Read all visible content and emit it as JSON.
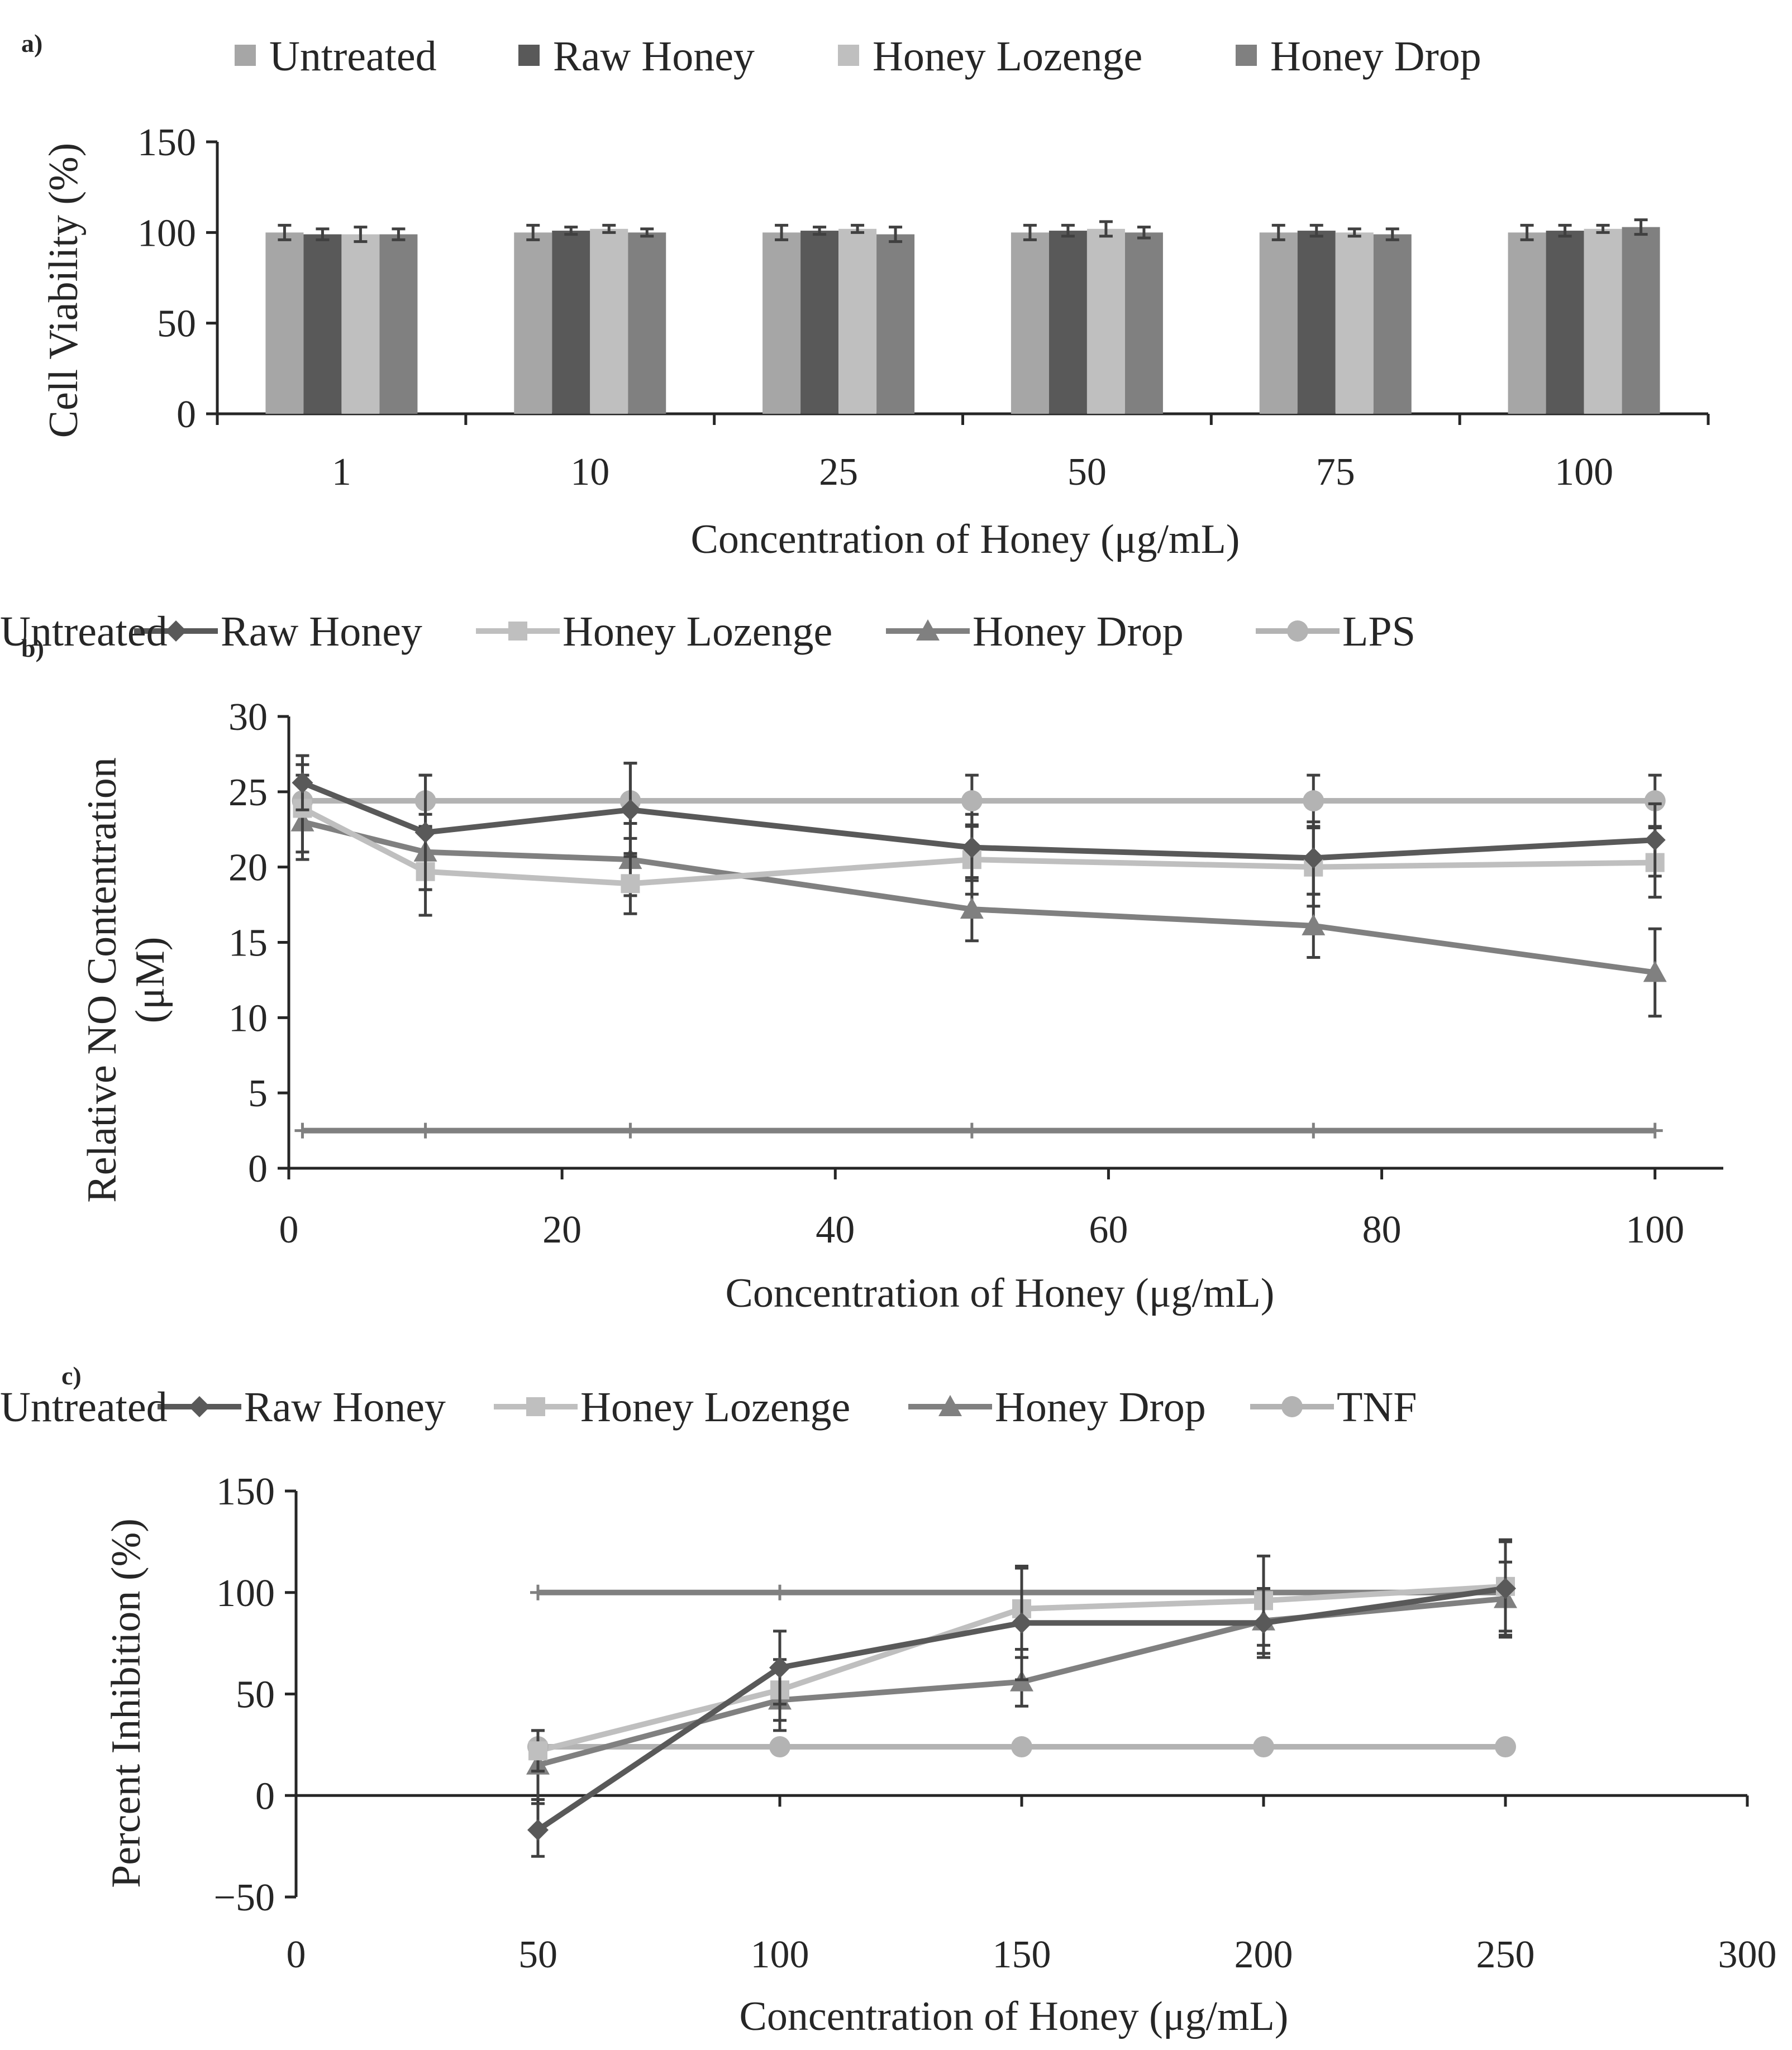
{
  "chart_data": [
    {
      "panel": "a)",
      "type": "bar",
      "title": "",
      "xlabel": "Concentration of Honey (μg/mL)",
      "ylabel": "Cell Viability (%)",
      "ylim": [
        0,
        150
      ],
      "yticks": [
        0,
        50,
        100,
        150
      ],
      "categories": [
        "1",
        "10",
        "25",
        "50",
        "75",
        "100"
      ],
      "legend_position": "top",
      "series": [
        {
          "name": "Untreated",
          "color": "#a6a6a6",
          "values": [
            100,
            100,
            100,
            100,
            100,
            100
          ],
          "errors": [
            4,
            4,
            4,
            4,
            4,
            4
          ]
        },
        {
          "name": "Raw Honey",
          "color": "#595959",
          "values": [
            99,
            101,
            101,
            101,
            101,
            101
          ],
          "errors": [
            3,
            2,
            2,
            3,
            3,
            3
          ]
        },
        {
          "name": "Honey Lozenge",
          "color": "#bfbfbf",
          "values": [
            99,
            102,
            102,
            102,
            100,
            102
          ],
          "errors": [
            4,
            2,
            2,
            4,
            2,
            2
          ]
        },
        {
          "name": "Honey Drop",
          "color": "#808080",
          "values": [
            99,
            100,
            99,
            100,
            99,
            103
          ],
          "errors": [
            3,
            2,
            4,
            3,
            3,
            4
          ]
        }
      ]
    },
    {
      "panel": "b)",
      "type": "line",
      "title": "",
      "xlabel": "Concentration of Honey (μg/mL)",
      "ylabel": [
        "Relative NO Contentration",
        "(μM)"
      ],
      "xlim": [
        0,
        105
      ],
      "xticks": [
        0,
        20,
        40,
        60,
        80,
        100
      ],
      "ylim": [
        0,
        30
      ],
      "yticks": [
        0,
        5,
        10,
        15,
        20,
        25,
        30
      ],
      "legend_position": "top",
      "x": [
        1,
        10,
        25,
        50,
        75,
        100
      ],
      "series": [
        {
          "name": "Raw Honey",
          "color": "#595959",
          "marker": "diamond",
          "values": [
            25.6,
            22.3,
            23.8,
            21.3,
            20.6,
            21.8
          ],
          "errors": [
            1.8,
            3.8,
            3.1,
            2.2,
            2.4,
            2.4
          ]
        },
        {
          "name": "Honey Lozenge",
          "color": "#bfbfbf",
          "marker": "square",
          "values": [
            23.9,
            19.7,
            18.9,
            20.5,
            20.0,
            20.3
          ],
          "errors": [
            2.9,
            2.9,
            2.0,
            2.3,
            2.6,
            2.3
          ]
        },
        {
          "name": "Honey Drop",
          "color": "#808080",
          "marker": "triangle",
          "values": [
            23.0,
            21.0,
            20.5,
            17.2,
            16.1,
            13.0
          ],
          "errors": [
            2.5,
            2.5,
            2.4,
            2.1,
            2.1,
            2.9
          ]
        },
        {
          "name": "LPS",
          "color": "#b3b3b3",
          "marker": "circle",
          "values": [
            24.4,
            24.4,
            24.4,
            24.4,
            24.4,
            24.4
          ],
          "errors": [
            1.7,
            1.7,
            2.5,
            1.7,
            1.7,
            1.7
          ]
        },
        {
          "name": "Untreated",
          "color": "#808080",
          "marker": "plus",
          "values": [
            2.5,
            2.5,
            2.5,
            2.5,
            2.5,
            2.5
          ],
          "errors": [
            0,
            0,
            0,
            0,
            0,
            0
          ]
        }
      ]
    },
    {
      "panel": "c)",
      "type": "line",
      "title": "",
      "xlabel": "Concentration of Honey (μg/mL)",
      "ylabel": "Percent Inhibition (%)",
      "xlim": [
        0,
        300
      ],
      "xticks": [
        0,
        50,
        100,
        150,
        200,
        250,
        300
      ],
      "ylim": [
        -50,
        150
      ],
      "yticks": [
        -50,
        0,
        50,
        100,
        150
      ],
      "legend_position": "top",
      "x": [
        50,
        100,
        150,
        200,
        250
      ],
      "series": [
        {
          "name": "Raw Honey",
          "color": "#595959",
          "marker": "diamond",
          "values": [
            -17,
            63,
            85,
            85,
            102
          ],
          "errors": [
            13,
            18,
            28,
            17,
            24
          ]
        },
        {
          "name": "Honey Lozenge",
          "color": "#bfbfbf",
          "marker": "square",
          "values": [
            22,
            52,
            92,
            96,
            103
          ],
          "errors": [
            10,
            15,
            20,
            22,
            22
          ]
        },
        {
          "name": "Honey Drop",
          "color": "#808080",
          "marker": "triangle",
          "values": [
            15,
            47,
            56,
            86,
            97
          ],
          "errors": [
            17,
            15,
            12,
            16,
            18
          ]
        },
        {
          "name": "TNF",
          "color": "#b3b3b3",
          "marker": "circle",
          "values": [
            24,
            24,
            24,
            24,
            24
          ],
          "errors": [
            0,
            0,
            0,
            0,
            0
          ]
        },
        {
          "name": "Untreated",
          "color": "#808080",
          "marker": "plus",
          "values": [
            100,
            100,
            100,
            100,
            100
          ],
          "errors": [
            0,
            0,
            0,
            0,
            0
          ]
        }
      ]
    }
  ]
}
